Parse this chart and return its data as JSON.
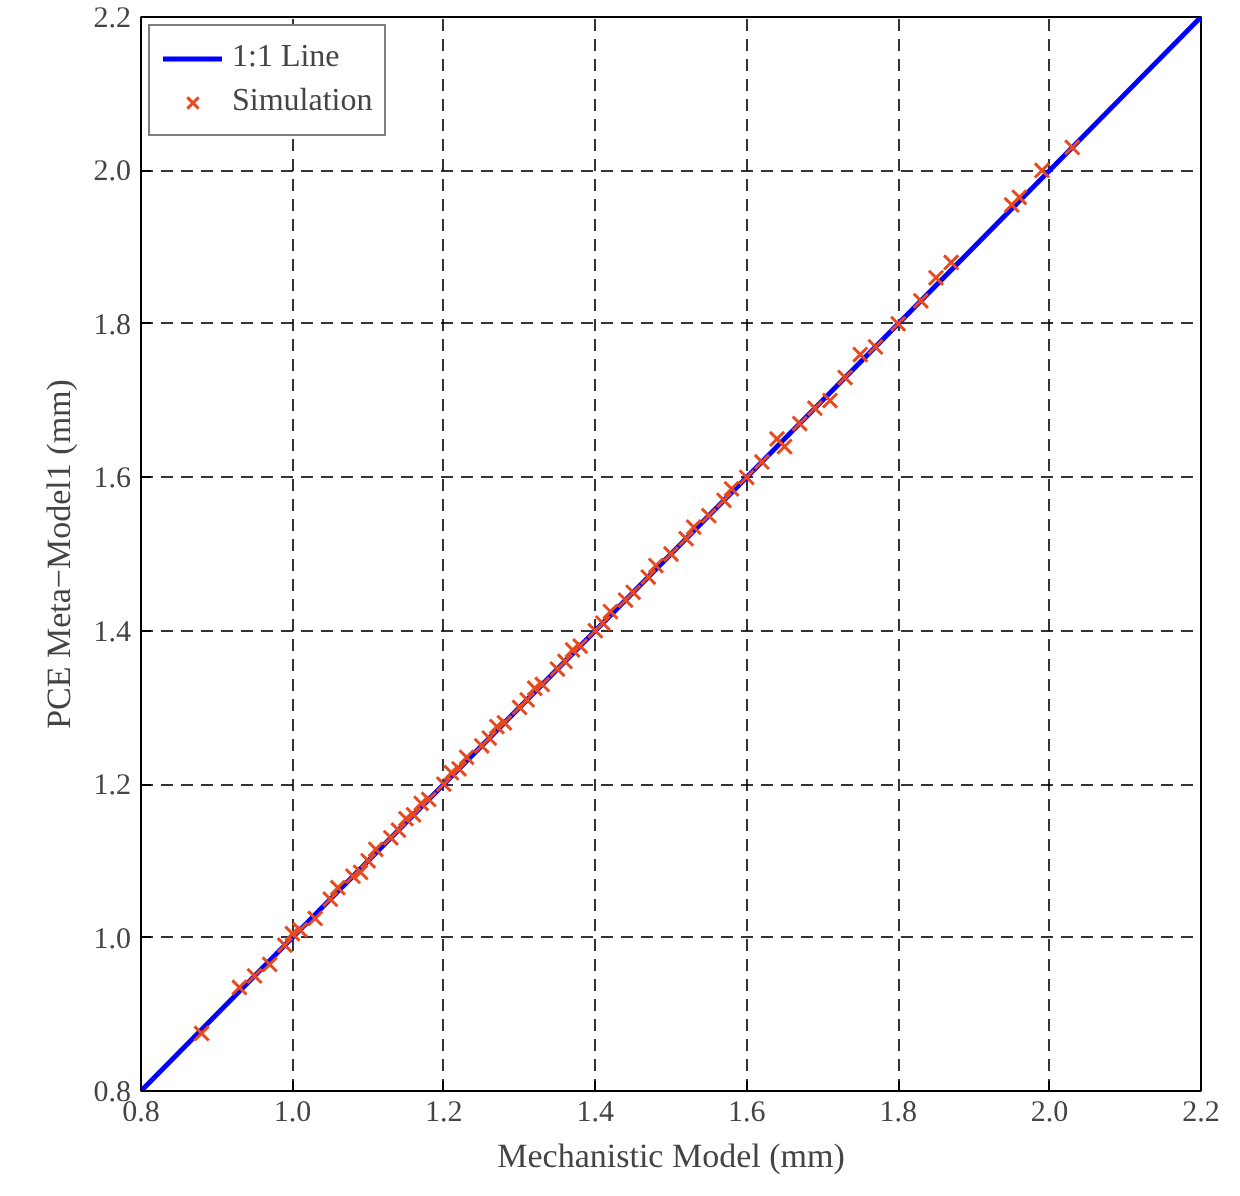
{
  "chart_data": {
    "type": "scatter",
    "xlabel": "Mechanistic Model (mm)",
    "ylabel": "PCE Meta−Model1 (mm)",
    "xlim": [
      0.8,
      2.2
    ],
    "ylim": [
      0.8,
      2.2
    ],
    "xticks": [
      0.8,
      {
        "value": 1.0,
        "label": "1.0"
      },
      1.2,
      1.4,
      1.6,
      1.8,
      {
        "value": 2.0,
        "label": "2.0"
      },
      2.2
    ],
    "yticks": [
      0.8,
      {
        "value": 1.0,
        "label": "1.0"
      },
      1.2,
      1.4,
      1.6,
      1.8,
      {
        "value": 2.0,
        "label": "2.0"
      },
      2.2
    ],
    "grid": true,
    "legend": "top left",
    "series": [
      {
        "name": "1:1 Line",
        "type": "line",
        "color": "#0000ff",
        "x": [
          0.8,
          2.2
        ],
        "values": [
          0.8,
          2.2
        ]
      },
      {
        "name": "Simulation",
        "marker": "cross",
        "color": "#e8491d",
        "x": [
          0.88,
          0.93,
          0.95,
          0.97,
          0.99,
          1.0,
          1.01,
          1.03,
          1.05,
          1.06,
          1.08,
          1.09,
          1.1,
          1.11,
          1.13,
          1.14,
          1.15,
          1.16,
          1.17,
          1.18,
          1.2,
          1.21,
          1.22,
          1.23,
          1.25,
          1.26,
          1.27,
          1.28,
          1.3,
          1.31,
          1.32,
          1.33,
          1.35,
          1.36,
          1.37,
          1.38,
          1.4,
          1.41,
          1.42,
          1.44,
          1.45,
          1.47,
          1.48,
          1.5,
          1.52,
          1.53,
          1.55,
          1.57,
          1.58,
          1.6,
          1.62,
          1.64,
          1.65,
          1.67,
          1.69,
          1.71,
          1.73,
          1.75,
          1.77,
          1.8,
          1.83,
          1.85,
          1.87,
          1.95,
          1.96,
          1.99,
          2.03
        ],
        "values": [
          0.875,
          0.935,
          0.95,
          0.965,
          0.99,
          1.005,
          1.01,
          1.025,
          1.05,
          1.065,
          1.08,
          1.085,
          1.1,
          1.115,
          1.13,
          1.14,
          1.155,
          1.16,
          1.175,
          1.18,
          1.2,
          1.215,
          1.22,
          1.235,
          1.25,
          1.26,
          1.275,
          1.28,
          1.3,
          1.31,
          1.325,
          1.33,
          1.35,
          1.36,
          1.375,
          1.38,
          1.4,
          1.41,
          1.425,
          1.44,
          1.45,
          1.47,
          1.485,
          1.5,
          1.52,
          1.535,
          1.55,
          1.57,
          1.585,
          1.6,
          1.62,
          1.65,
          1.64,
          1.67,
          1.69,
          1.7,
          1.73,
          1.76,
          1.77,
          1.8,
          1.83,
          1.86,
          1.88,
          1.955,
          1.965,
          2.0,
          2.03
        ]
      }
    ]
  }
}
